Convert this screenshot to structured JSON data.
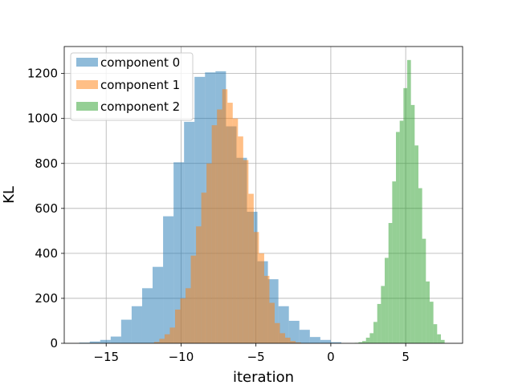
{
  "chart_data": {
    "type": "bar",
    "subtype": "histogram",
    "title": "",
    "xlabel": "iteration",
    "ylabel": "KL",
    "xlim": [
      -17.8,
      8.8
    ],
    "ylim": [
      0,
      1320
    ],
    "xticks": [
      -15,
      -10,
      -5,
      0,
      5
    ],
    "xtick_labels": [
      "−15",
      "−10",
      "−5",
      "0",
      "5"
    ],
    "yticks": [
      0,
      200,
      400,
      600,
      800,
      1000,
      1200
    ],
    "ytick_labels": [
      "0",
      "200",
      "400",
      "600",
      "800",
      "1000",
      "1200"
    ],
    "grid": true,
    "legend_position": "top-left",
    "series": [
      {
        "name": "component 0",
        "color": "#1f77b4",
        "alpha": 0.5,
        "bins": [
          {
            "x0": -16.8,
            "x1": -16.1,
            "count": 3
          },
          {
            "x0": -16.1,
            "x1": -15.4,
            "count": 8
          },
          {
            "x0": -15.4,
            "x1": -14.7,
            "count": 15
          },
          {
            "x0": -14.7,
            "x1": -14.0,
            "count": 30
          },
          {
            "x0": -14.0,
            "x1": -13.3,
            "count": 105
          },
          {
            "x0": -13.3,
            "x1": -12.6,
            "count": 165
          },
          {
            "x0": -12.6,
            "x1": -11.9,
            "count": 245
          },
          {
            "x0": -11.9,
            "x1": -11.2,
            "count": 340
          },
          {
            "x0": -11.2,
            "x1": -10.5,
            "count": 565
          },
          {
            "x0": -10.5,
            "x1": -9.8,
            "count": 805
          },
          {
            "x0": -9.8,
            "x1": -9.1,
            "count": 985
          },
          {
            "x0": -9.1,
            "x1": -8.4,
            "count": 1185
          },
          {
            "x0": -8.4,
            "x1": -7.7,
            "count": 1205
          },
          {
            "x0": -7.7,
            "x1": -7.0,
            "count": 1210
          },
          {
            "x0": -7.0,
            "x1": -6.3,
            "count": 965
          },
          {
            "x0": -6.3,
            "x1": -5.6,
            "count": 825
          },
          {
            "x0": -5.6,
            "x1": -4.9,
            "count": 585
          },
          {
            "x0": -4.9,
            "x1": -4.2,
            "count": 365
          },
          {
            "x0": -4.2,
            "x1": -3.5,
            "count": 285
          },
          {
            "x0": -3.5,
            "x1": -2.8,
            "count": 165
          },
          {
            "x0": -2.8,
            "x1": -2.1,
            "count": 100
          },
          {
            "x0": -2.1,
            "x1": -1.4,
            "count": 60
          },
          {
            "x0": -1.4,
            "x1": -0.7,
            "count": 28
          },
          {
            "x0": -0.7,
            "x1": 0.0,
            "count": 15
          },
          {
            "x0": 0.0,
            "x1": 0.7,
            "count": 5
          }
        ]
      },
      {
        "name": "component 1",
        "color": "#ff7f0e",
        "alpha": 0.5,
        "bins": [
          {
            "x0": -11.8,
            "x1": -11.45,
            "count": 6
          },
          {
            "x0": -11.45,
            "x1": -11.1,
            "count": 20
          },
          {
            "x0": -11.1,
            "x1": -10.75,
            "count": 40
          },
          {
            "x0": -10.75,
            "x1": -10.4,
            "count": 70
          },
          {
            "x0": -10.4,
            "x1": -10.05,
            "count": 150
          },
          {
            "x0": -10.05,
            "x1": -9.7,
            "count": 200
          },
          {
            "x0": -9.7,
            "x1": -9.35,
            "count": 245
          },
          {
            "x0": -9.35,
            "x1": -9.0,
            "count": 390
          },
          {
            "x0": -9.0,
            "x1": -8.65,
            "count": 520
          },
          {
            "x0": -8.65,
            "x1": -8.3,
            "count": 670
          },
          {
            "x0": -8.3,
            "x1": -7.95,
            "count": 800
          },
          {
            "x0": -7.95,
            "x1": -7.6,
            "count": 970
          },
          {
            "x0": -7.6,
            "x1": -7.25,
            "count": 1040
          },
          {
            "x0": -7.25,
            "x1": -6.9,
            "count": 1130
          },
          {
            "x0": -6.9,
            "x1": -6.55,
            "count": 1070
          },
          {
            "x0": -6.55,
            "x1": -6.2,
            "count": 1000
          },
          {
            "x0": -6.2,
            "x1": -5.85,
            "count": 920
          },
          {
            "x0": -5.85,
            "x1": -5.5,
            "count": 815
          },
          {
            "x0": -5.5,
            "x1": -5.15,
            "count": 665
          },
          {
            "x0": -5.15,
            "x1": -4.8,
            "count": 495
          },
          {
            "x0": -4.8,
            "x1": -4.45,
            "count": 400
          },
          {
            "x0": -4.45,
            "x1": -4.1,
            "count": 300
          },
          {
            "x0": -4.1,
            "x1": -3.75,
            "count": 180
          },
          {
            "x0": -3.75,
            "x1": -3.4,
            "count": 90
          },
          {
            "x0": -3.4,
            "x1": -3.05,
            "count": 45
          },
          {
            "x0": -3.05,
            "x1": -2.7,
            "count": 25
          },
          {
            "x0": -2.7,
            "x1": -2.35,
            "count": 10
          },
          {
            "x0": -2.35,
            "x1": -2.0,
            "count": 4
          }
        ]
      },
      {
        "name": "component 2",
        "color": "#2ca02c",
        "alpha": 0.5,
        "bins": [
          {
            "x0": 1.6,
            "x1": 1.85,
            "count": 2
          },
          {
            "x0": 1.85,
            "x1": 2.1,
            "count": 5
          },
          {
            "x0": 2.1,
            "x1": 2.35,
            "count": 10
          },
          {
            "x0": 2.35,
            "x1": 2.6,
            "count": 25
          },
          {
            "x0": 2.6,
            "x1": 2.85,
            "count": 45
          },
          {
            "x0": 2.85,
            "x1": 3.1,
            "count": 95
          },
          {
            "x0": 3.1,
            "x1": 3.35,
            "count": 175
          },
          {
            "x0": 3.35,
            "x1": 3.6,
            "count": 255
          },
          {
            "x0": 3.6,
            "x1": 3.85,
            "count": 380
          },
          {
            "x0": 3.85,
            "x1": 4.1,
            "count": 535
          },
          {
            "x0": 4.1,
            "x1": 4.35,
            "count": 720
          },
          {
            "x0": 4.35,
            "x1": 4.6,
            "count": 940
          },
          {
            "x0": 4.6,
            "x1": 4.85,
            "count": 990
          },
          {
            "x0": 4.85,
            "x1": 5.1,
            "count": 1135
          },
          {
            "x0": 5.1,
            "x1": 5.35,
            "count": 1260
          },
          {
            "x0": 5.35,
            "x1": 5.6,
            "count": 1060
          },
          {
            "x0": 5.6,
            "x1": 5.85,
            "count": 880
          },
          {
            "x0": 5.85,
            "x1": 6.1,
            "count": 690
          },
          {
            "x0": 6.1,
            "x1": 6.35,
            "count": 465
          },
          {
            "x0": 6.35,
            "x1": 6.6,
            "count": 275
          },
          {
            "x0": 6.6,
            "x1": 6.85,
            "count": 185
          },
          {
            "x0": 6.85,
            "x1": 7.1,
            "count": 85
          },
          {
            "x0": 7.1,
            "x1": 7.35,
            "count": 40
          },
          {
            "x0": 7.35,
            "x1": 7.6,
            "count": 15
          }
        ]
      }
    ]
  }
}
